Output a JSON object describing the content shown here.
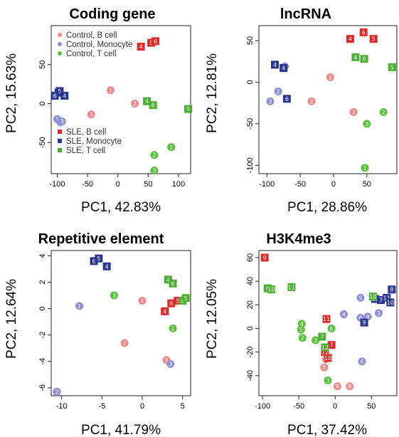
{
  "colors": {
    "control_b": "#f08a8a",
    "control_mono": "#8c8fd6",
    "control_t": "#59c23c",
    "sle_b": "#e02828",
    "sle_mono": "#283593",
    "sle_t": "#4caf32"
  },
  "legend": {
    "control": [
      "Control, B cell",
      "Control, Monocyte",
      "Control, T cell"
    ],
    "sle": [
      "SLE, B cell",
      "SLE, Monocyte",
      "SLE, T cell"
    ]
  },
  "chart_data": [
    {
      "type": "scatter",
      "title": "Coding gene",
      "xlabel": "PC1, 42.83%",
      "ylabel": "PC2, 15.63%",
      "xlim": [
        -110,
        120
      ],
      "ylim": [
        -90,
        100
      ],
      "xticks": [
        -100,
        -50,
        0,
        50,
        100
      ],
      "yticks": [
        -50,
        0,
        50
      ],
      "points": [
        {
          "g": "control_b",
          "x": -12,
          "y": 17,
          "label": "1"
        },
        {
          "g": "control_b",
          "x": 28,
          "y": 0,
          "label": "2"
        },
        {
          "g": "control_b",
          "x": -44,
          "y": -14,
          "label": "3"
        },
        {
          "g": "control_mono",
          "x": -100,
          "y": -20,
          "label": "1"
        },
        {
          "g": "control_mono",
          "x": -95,
          "y": -24,
          "label": "2"
        },
        {
          "g": "control_mono",
          "x": -92,
          "y": -23,
          "label": "3"
        },
        {
          "g": "control_t",
          "x": 88,
          "y": -56,
          "label": "1"
        },
        {
          "g": "control_t",
          "x": 60,
          "y": -66,
          "label": "2"
        },
        {
          "g": "control_t",
          "x": 60,
          "y": -86,
          "label": "3"
        },
        {
          "g": "sle_b",
          "x": 38,
          "y": 73,
          "label": "4"
        },
        {
          "g": "sle_b",
          "x": 55,
          "y": 78,
          "label": "5"
        },
        {
          "g": "sle_b",
          "x": 62,
          "y": 80,
          "label": "6"
        },
        {
          "g": "sle_mono",
          "x": -98,
          "y": 14,
          "label": "4"
        },
        {
          "g": "sle_mono",
          "x": -96,
          "y": 16,
          "label": "5"
        },
        {
          "g": "sle_mono",
          "x": -104,
          "y": 10,
          "label": "6"
        },
        {
          "g": "sle_mono",
          "x": -88,
          "y": 10,
          "label": "4"
        },
        {
          "g": "sle_t",
          "x": 48,
          "y": 3,
          "label": "4"
        },
        {
          "g": "sle_t",
          "x": 58,
          "y": -2,
          "label": "6"
        },
        {
          "g": "sle_t",
          "x": 116,
          "y": -7,
          "label": "5"
        }
      ]
    },
    {
      "type": "scatter",
      "title": "lncRNA",
      "xlabel": "PC1, 28.86%",
      "ylabel": "PC2, 12.81%",
      "xlim": [
        -112,
        95
      ],
      "ylim": [
        -110,
        68
      ],
      "xticks": [
        -100,
        -50,
        0,
        50
      ],
      "yticks": [
        -100,
        -50,
        0,
        50
      ],
      "points": [
        {
          "g": "control_b",
          "x": -5,
          "y": 6,
          "label": "1"
        },
        {
          "g": "control_b",
          "x": 30,
          "y": -36,
          "label": "3"
        },
        {
          "g": "control_b",
          "x": -33,
          "y": -23,
          "label": "2"
        },
        {
          "g": "control_mono",
          "x": -73,
          "y": 19,
          "label": "1"
        },
        {
          "g": "control_mono",
          "x": -83,
          "y": -11,
          "label": "2"
        },
        {
          "g": "control_mono",
          "x": -95,
          "y": -23,
          "label": "3"
        },
        {
          "g": "control_t",
          "x": 75,
          "y": -36,
          "label": "2"
        },
        {
          "g": "control_t",
          "x": 50,
          "y": -50,
          "label": "3"
        },
        {
          "g": "control_t",
          "x": 47,
          "y": -103,
          "label": "1"
        },
        {
          "g": "sle_b",
          "x": 25,
          "y": 52,
          "label": "4"
        },
        {
          "g": "sle_b",
          "x": 45,
          "y": 60,
          "label": "6"
        },
        {
          "g": "sle_b",
          "x": 60,
          "y": 52,
          "label": "5"
        },
        {
          "g": "sle_mono",
          "x": -88,
          "y": 21,
          "label": "4"
        },
        {
          "g": "sle_mono",
          "x": -75,
          "y": 17,
          "label": "4"
        },
        {
          "g": "sle_mono",
          "x": -70,
          "y": -20,
          "label": "6"
        },
        {
          "g": "sle_t",
          "x": 33,
          "y": 30,
          "label": "4"
        },
        {
          "g": "sle_t",
          "x": 46,
          "y": 28,
          "label": "6"
        },
        {
          "g": "sle_t",
          "x": 88,
          "y": 18,
          "label": "5"
        }
      ]
    },
    {
      "type": "scatter",
      "title": "Repetitive element",
      "xlabel": "PC1, 41.79%",
      "ylabel": "PC2, 12.64%",
      "xlim": [
        -11.3,
        6
      ],
      "ylim": [
        -6.6,
        4.4
      ],
      "xticks": [
        -10,
        -5,
        0,
        5
      ],
      "yticks": [
        -6,
        -4,
        -2,
        0,
        2,
        4
      ],
      "points": [
        {
          "g": "control_b",
          "x": 0,
          "y": 0.6,
          "label": "1"
        },
        {
          "g": "control_b",
          "x": -2.2,
          "y": -2.6,
          "label": "2"
        },
        {
          "g": "control_b",
          "x": 3,
          "y": -3.9,
          "label": "3"
        },
        {
          "g": "control_mono",
          "x": -7.8,
          "y": 0.2,
          "label": "1"
        },
        {
          "g": "control_mono",
          "x": 3.5,
          "y": -4.2,
          "label": "3"
        },
        {
          "g": "control_mono",
          "x": -10.6,
          "y": -6.3,
          "label": "2"
        },
        {
          "g": "control_t",
          "x": -3.5,
          "y": 1,
          "label": "3"
        },
        {
          "g": "control_t",
          "x": 3.8,
          "y": -1.5,
          "label": "2"
        },
        {
          "g": "sle_b",
          "x": 2.8,
          "y": -0.2,
          "label": "4"
        },
        {
          "g": "sle_b",
          "x": 3.6,
          "y": 0.4,
          "label": "6"
        },
        {
          "g": "sle_b",
          "x": 4.4,
          "y": 0.6,
          "label": "5"
        },
        {
          "g": "sle_mono",
          "x": -6,
          "y": 3.6,
          "label": "6"
        },
        {
          "g": "sle_mono",
          "x": -5.4,
          "y": 3.8,
          "label": "5"
        },
        {
          "g": "sle_mono",
          "x": -4.4,
          "y": 3.2,
          "label": "4"
        },
        {
          "g": "sle_t",
          "x": 3.2,
          "y": 2.2,
          "label": "4"
        },
        {
          "g": "sle_t",
          "x": 3.8,
          "y": 1.9,
          "label": "6"
        },
        {
          "g": "sle_t",
          "x": 5,
          "y": 0.6,
          "label": "6"
        },
        {
          "g": "sle_t",
          "x": 5.4,
          "y": 0.8,
          "label": "5"
        }
      ]
    },
    {
      "type": "scatter",
      "title": "H3K4me3",
      "xlabel": "PC1, 37.42%",
      "ylabel": "PC2, 12.05%",
      "xlim": [
        -105,
        85
      ],
      "ylim": [
        -57,
        66
      ],
      "xticks": [
        -100,
        -50,
        0,
        50
      ],
      "yticks": [
        -40,
        -20,
        0,
        20,
        40,
        60
      ],
      "points": [
        {
          "g": "control_b",
          "x": -15,
          "y": -33,
          "label": "5"
        },
        {
          "g": "control_b",
          "x": 3,
          "y": -49,
          "label": "9"
        },
        {
          "g": "control_b",
          "x": 20,
          "y": -49,
          "label": "8"
        },
        {
          "g": "control_b",
          "x": -13,
          "y": -26,
          "label": "11"
        },
        {
          "g": "control_mono",
          "x": 35,
          "y": 26,
          "label": "5"
        },
        {
          "g": "control_mono",
          "x": 12,
          "y": 12,
          "label": "4"
        },
        {
          "g": "control_mono",
          "x": 35,
          "y": 9,
          "label": "6"
        },
        {
          "g": "control_mono",
          "x": 45,
          "y": 10,
          "label": "8"
        },
        {
          "g": "control_mono",
          "x": 60,
          "y": 13,
          "label": "3"
        },
        {
          "g": "control_mono",
          "x": 37,
          "y": -28,
          "label": "6"
        },
        {
          "g": "control_t",
          "x": -46,
          "y": 4,
          "label": "4"
        },
        {
          "g": "control_t",
          "x": -47,
          "y": -1,
          "label": "5"
        },
        {
          "g": "control_t",
          "x": -45,
          "y": -8,
          "label": "2"
        },
        {
          "g": "control_t",
          "x": -5,
          "y": 0,
          "label": "6"
        },
        {
          "g": "control_t",
          "x": -27,
          "y": -10,
          "label": "3"
        },
        {
          "g": "control_t",
          "x": -10,
          "y": -44,
          "label": "3"
        },
        {
          "g": "sle_b",
          "x": -97,
          "y": 60,
          "label": "9"
        },
        {
          "g": "sle_b",
          "x": -12,
          "y": 8,
          "label": "11"
        },
        {
          "g": "sle_b",
          "x": -5,
          "y": -14,
          "label": "7"
        },
        {
          "g": "sle_b",
          "x": -14,
          "y": -20,
          "label": "12"
        },
        {
          "g": "sle_b",
          "x": -10,
          "y": -25,
          "label": "10"
        },
        {
          "g": "sle_mono",
          "x": 55,
          "y": 25,
          "label": "12"
        },
        {
          "g": "sle_mono",
          "x": 63,
          "y": 24,
          "label": "7"
        },
        {
          "g": "sle_mono",
          "x": 71,
          "y": 26,
          "label": "11"
        },
        {
          "g": "sle_mono",
          "x": 76,
          "y": 22,
          "label": "10"
        },
        {
          "g": "sle_mono",
          "x": 78,
          "y": 33,
          "label": "8"
        },
        {
          "g": "sle_mono",
          "x": 40,
          "y": 5,
          "label": "9"
        },
        {
          "g": "sle_t",
          "x": -93,
          "y": 34,
          "label": "8"
        },
        {
          "g": "sle_t",
          "x": -88,
          "y": 33,
          "label": "10"
        },
        {
          "g": "sle_t",
          "x": -60,
          "y": 35,
          "label": "11"
        },
        {
          "g": "sle_t",
          "x": 52,
          "y": 27,
          "label": "10"
        },
        {
          "g": "sle_t",
          "x": -18,
          "y": -7,
          "label": "7"
        },
        {
          "g": "sle_t",
          "x": -14,
          "y": -16,
          "label": "12"
        }
      ]
    }
  ]
}
